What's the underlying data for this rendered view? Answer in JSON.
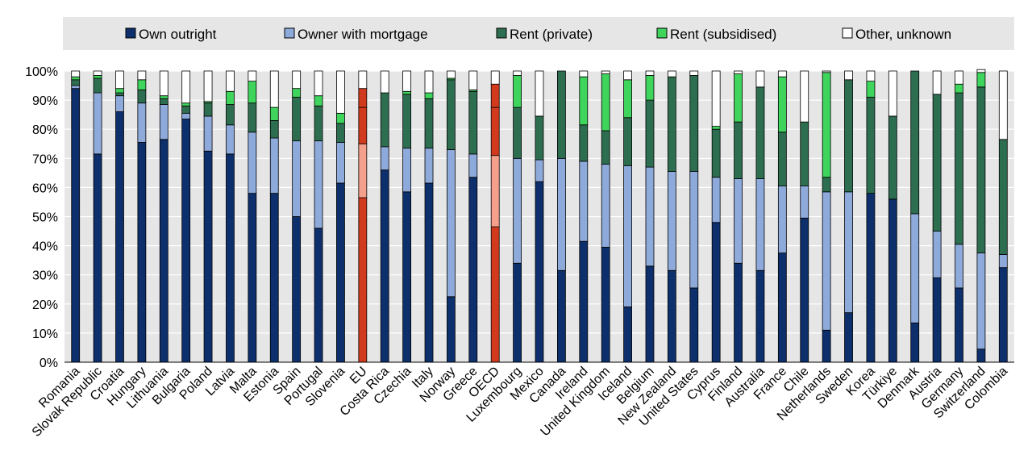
{
  "chart_data": {
    "type": "bar",
    "stacked": true,
    "title": "",
    "xlabel": "",
    "ylabel": "",
    "ylim": [
      0,
      100
    ],
    "yticks": [
      "0%",
      "10%",
      "20%",
      "30%",
      "40%",
      "50%",
      "60%",
      "70%",
      "80%",
      "90%",
      "100%"
    ],
    "grid": true,
    "legend": "top",
    "categories": [
      "Romania",
      "Slovak Republic",
      "Croatia",
      "Hungary",
      "Lithuania",
      "Bulgaria",
      "Poland",
      "Latvia",
      "Malta",
      "Estonia",
      "Spain",
      "Portugal",
      "Slovenia",
      "EU",
      "Costa Rica",
      "Czechia",
      "Italy",
      "Norway",
      "Greece",
      "OECD",
      "Luxembourg",
      "Mexico",
      "Canada",
      "Ireland",
      "United Kingdom",
      "Iceland",
      "Belgium",
      "New Zealand",
      "United States",
      "Cyprus",
      "Finland",
      "Australia",
      "France",
      "Chile",
      "Netherlands",
      "Sweden",
      "Korea",
      "Türkiye",
      "Denmark",
      "Austria",
      "Germany",
      "Switzerland",
      "Colombia"
    ],
    "highlight": {
      "EU": [
        "#d23a1e",
        "#f5a08c",
        "#d23a1e",
        "#d23a1e",
        "#ffffff"
      ],
      "OECD": [
        "#d23a1e",
        "#f5a08c",
        "#d23a1e",
        "#d23a1e",
        "#ffffff"
      ]
    },
    "series": [
      {
        "name": "Own outright",
        "color": "#0d2f6b",
        "values": [
          94,
          71.5,
          86,
          75.5,
          76.5,
          83.5,
          72.5,
          71.5,
          58,
          58,
          50,
          46,
          61.5,
          56.5,
          66,
          58.5,
          61.5,
          22.5,
          63.5,
          46.5,
          34,
          62,
          31.5,
          41.5,
          39.5,
          19,
          33,
          31.5,
          25.5,
          48,
          34,
          31.5,
          37.5,
          49.5,
          11,
          17,
          58,
          56,
          13.5,
          29,
          25.5,
          4.5,
          32.5
        ]
      },
      {
        "name": "Owner with mortgage",
        "color": "#8eaadb",
        "values": [
          1,
          21,
          5.5,
          13.5,
          12,
          2,
          12,
          10,
          21,
          19,
          26,
          30,
          14,
          18.5,
          8,
          15,
          12,
          50.5,
          8,
          24.5,
          36,
          7.5,
          38.5,
          27.5,
          28.5,
          48.5,
          34,
          34,
          40,
          15.5,
          29,
          31.5,
          23,
          11,
          47.5,
          41.5,
          0,
          0,
          37.5,
          16,
          15,
          33,
          4.5
        ]
      },
      {
        "name": "Rent (private)",
        "color": "#2e6e50",
        "values": [
          2,
          5,
          1,
          4.5,
          2,
          2.5,
          4.5,
          7,
          10,
          6,
          15,
          12,
          6.5,
          12.5,
          18.5,
          18.5,
          17,
          24,
          21.5,
          16.5,
          17.5,
          15,
          30,
          12.5,
          11.5,
          16.5,
          23,
          32.5,
          33,
          16.5,
          19.5,
          31.5,
          18.5,
          22,
          5,
          38.5,
          33,
          28.5,
          49,
          47,
          52,
          57,
          39.5
        ]
      },
      {
        "name": "Rent (subsidised)",
        "color": "#3fd45c",
        "values": [
          1,
          1,
          1.5,
          3.5,
          1,
          1,
          0.5,
          4.5,
          7.5,
          4.5,
          3,
          3.5,
          3.5,
          6.5,
          0,
          1,
          2,
          0.5,
          0.5,
          8,
          11,
          0,
          0,
          16.5,
          19.5,
          13,
          8.5,
          0,
          0,
          1,
          16.5,
          0,
          19,
          0,
          36,
          0,
          5.5,
          0,
          0,
          0,
          3,
          5,
          0
        ]
      },
      {
        "name": "Other, unknown",
        "color": "#ffffff",
        "values": [
          2,
          1.5,
          6,
          3,
          8.5,
          11,
          10.5,
          7,
          3.5,
          12.5,
          6,
          8.5,
          14.5,
          6,
          7.5,
          7,
          7.5,
          2.5,
          6.5,
          4.5,
          1.5,
          15.5,
          0,
          2,
          1,
          3,
          1.5,
          2,
          1.5,
          19,
          1,
          5.5,
          2,
          17.5,
          0.5,
          3,
          3.5,
          15.5,
          0,
          8,
          4.5,
          1,
          23.5
        ]
      }
    ]
  }
}
